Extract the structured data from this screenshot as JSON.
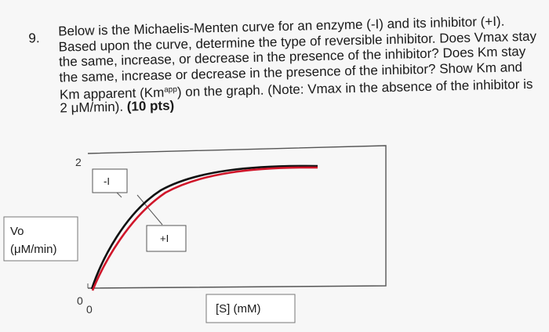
{
  "question": {
    "number": "9.",
    "lines": [
      "Below is the Michaelis-Menten curve for an enzyme (-I) and its inhibitor (+I).",
      "Based upon the curve, determine the type of reversible inhibitor. Does Vmax stay",
      "the same, increase, or decrease in the presence of the inhibitor? Does Km stay",
      "the same, increase or decrease in the presence of the inhibitor? Show Km and"
    ],
    "line5_before": "Km apparent (Km",
    "line5_sup": "app",
    "line5_after": ") on the graph. (Note: Vmax in the absence of the inhibitor is",
    "line6_normal": "2 μM/min). ",
    "line6_bold": "(10 pts)"
  },
  "graph": {
    "y_tick_top": "2",
    "y_tick_zero": "0",
    "x_tick_zero": "0",
    "label_no_inhibitor": "-I",
    "label_inhibitor": "+I",
    "y_axis_label_line1": "Vo",
    "y_axis_label_line2": "(μM/min)",
    "x_axis_label": "[S] (mM)",
    "colors": {
      "no_inhibitor_curve": "#111111",
      "inhibitor_curve": "#d0162a",
      "frame": "#555555"
    }
  }
}
